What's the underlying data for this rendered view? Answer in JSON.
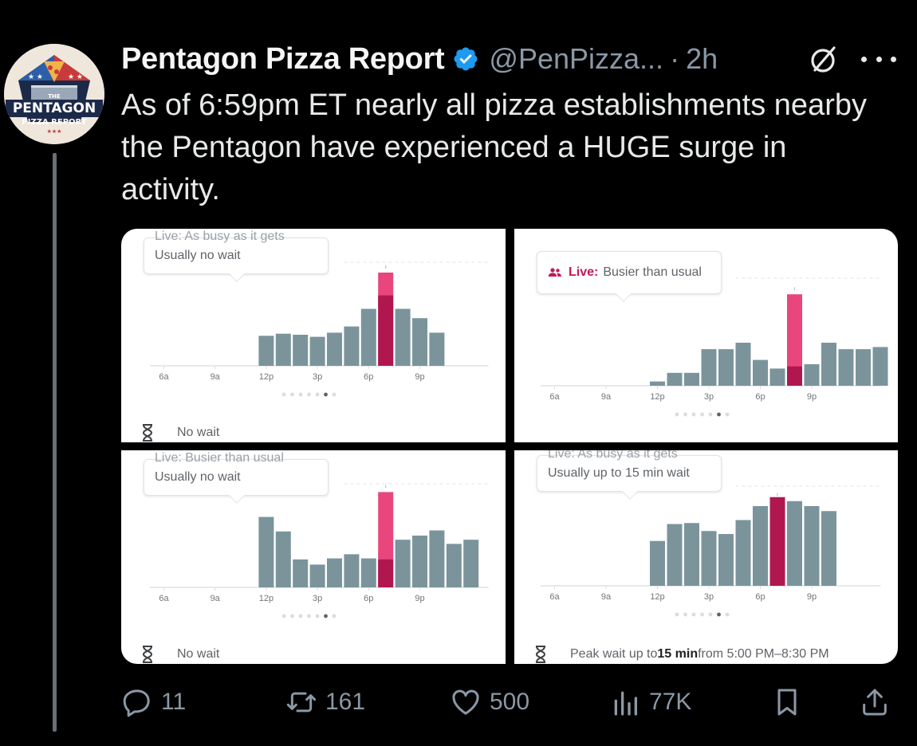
{
  "tweet": {
    "author_name": "Pentagon Pizza Report",
    "handle": "@PenPizza...",
    "separator": "·",
    "time": "2h",
    "text": "As of 6:59pm ET nearly all pizza establishments nearby the Pentagon have experienced a HUGE surge in activity.",
    "avatar": {
      "line1": "THE",
      "line2": "PENTAGON",
      "line3": "PIZZA REPORT"
    }
  },
  "panels": [
    {
      "live_text_cut": "Live: As busy as it gets",
      "bubble_text": "Usually no wait",
      "wait_text": "No wait",
      "x_labels": [
        "6a",
        "9a",
        "12p",
        "3p",
        "6p",
        "9p"
      ],
      "usual": [
        0,
        0,
        0,
        0,
        0,
        0,
        29,
        31,
        30,
        28,
        32,
        38,
        55,
        68,
        55,
        46,
        32
      ],
      "live_index": 13,
      "live_value": 90
    },
    {
      "live_label": "Live:",
      "bubble_text": "Busier than usual",
      "wait_text": "",
      "x_labels": [
        "6a",
        "9a",
        "12p",
        "3p",
        "6p",
        "9p"
      ],
      "usual": [
        0,
        0,
        0,
        0,
        0,
        0,
        4,
        12,
        12,
        34,
        34,
        40,
        24,
        16,
        18,
        20,
        40,
        34,
        34,
        36
      ],
      "live_index": 14,
      "live_value": 85
    },
    {
      "live_text_cut": "Live: Busier than usual",
      "bubble_text": "Usually no wait",
      "wait_text": "No wait",
      "x_labels": [
        "6a",
        "9a",
        "12p",
        "3p",
        "6p",
        "9p"
      ],
      "usual": [
        0,
        0,
        0,
        0,
        0,
        0,
        68,
        54,
        27,
        22,
        28,
        32,
        28,
        27,
        46,
        50,
        55,
        42,
        46
      ],
      "live_index": 13,
      "live_value": 92
    },
    {
      "live_text_cut": "Live: As busy as it gets",
      "bubble_text": "Usually up to 15 min wait",
      "wait_text": "Peak wait up to ",
      "wait_bold": "15 min",
      "wait_rest": " from 5:00 PM–8:30 PM",
      "x_labels": [
        "6a",
        "9a",
        "12p",
        "3p",
        "6p",
        "9p"
      ],
      "usual": [
        0,
        0,
        0,
        0,
        0,
        0,
        45,
        62,
        63,
        55,
        52,
        66,
        80,
        89,
        85,
        80,
        75
      ],
      "live_index": 13,
      "live_value": 86
    }
  ],
  "actions": {
    "replies": "11",
    "reposts": "161",
    "likes": "500",
    "views": "77K"
  },
  "colors": {
    "bar_usual": "#7b949c",
    "bar_live": "#e8467c",
    "bar_live_overlap": "#b0174f",
    "verified": "#1d9bf0"
  }
}
